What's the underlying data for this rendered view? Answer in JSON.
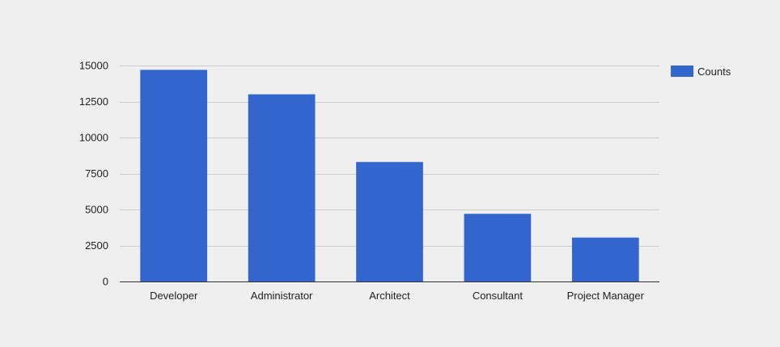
{
  "chart_data": {
    "type": "bar",
    "categories": [
      "Developer",
      "Administrator",
      "Architect",
      "Consultant",
      "Project Manager"
    ],
    "series": [
      {
        "name": "Counts",
        "values": [
          14700,
          13000,
          8300,
          4700,
          3050
        ]
      }
    ],
    "title": "",
    "xlabel": "",
    "ylabel": "",
    "ylim": [
      0,
      15000
    ],
    "yticks": [
      0,
      2500,
      5000,
      7500,
      10000,
      12500,
      15000
    ],
    "ytick_labels": [
      "0",
      "2500",
      "5000",
      "7500",
      "10000",
      "12500",
      "15000"
    ],
    "grid": true,
    "legend_position": "right-top",
    "colors": {
      "bar": "#3366cc",
      "grid": "#cccccc",
      "axis": "#333333",
      "background": "#efefef"
    }
  }
}
